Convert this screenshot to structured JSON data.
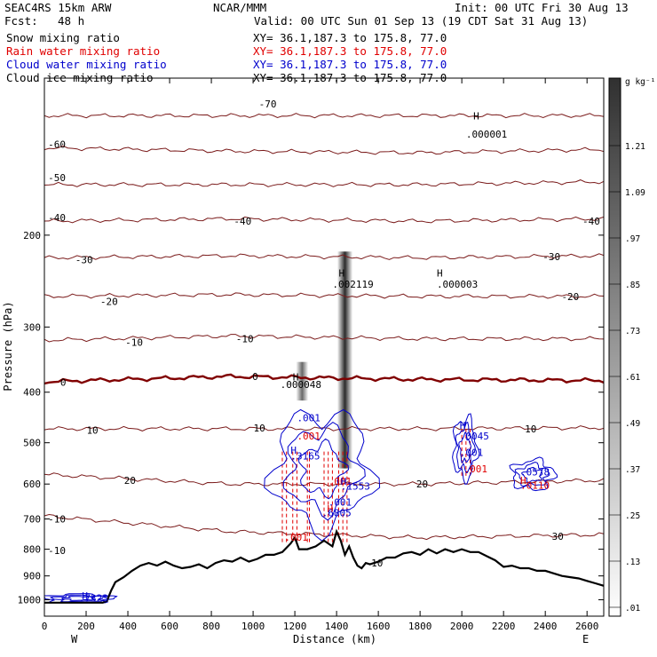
{
  "header": {
    "model": "SEAC4RS 15km ARW",
    "center": "NCAR/MMM",
    "init": "Init: 00 UTC Fri 30 Aug 13",
    "fcst_label": "Fcst:",
    "fcst_hours": "48 h",
    "valid": "Valid: 00 UTC Sun 01 Sep 13 (19 CDT Sat 31 Aug 13)"
  },
  "fields": [
    {
      "name": "Snow mixing ratio",
      "xy": "XY=  36.1,187.3 to 175.8, 77.0",
      "color": "#000000"
    },
    {
      "name": "Rain water mixing ratio",
      "xy": "XY=  36.1,187.3 to 175.8, 77.0",
      "color": "#e00000"
    },
    {
      "name": "Cloud water mixing ratio",
      "xy": "XY=  36.1,187.3 to 175.8, 77.0",
      "color": "#0000cc"
    },
    {
      "name": "Cloud ice mixing ratio",
      "xy": "XY=  36.1,187.3 to 175.8, 77.0",
      "color": "#000000"
    }
  ],
  "chart_data": {
    "type": "cross-section",
    "xlabel": "Distance (km)",
    "ylabel": "Pressure (hPa)",
    "xlim": [
      0,
      2680
    ],
    "ylim": [
      1075,
      100
    ],
    "y_scale": "log-pressure",
    "x_ticks": [
      0,
      200,
      400,
      600,
      800,
      1000,
      1200,
      1400,
      1600,
      1800,
      2000,
      2200,
      2400,
      2600
    ],
    "y_ticks": [
      200,
      300,
      400,
      500,
      600,
      700,
      800,
      900,
      1000
    ],
    "x_endpoints": {
      "left": "W",
      "right": "E"
    },
    "colorbar": {
      "unit": "g kg⁻¹",
      "labels": [
        1.21,
        1.09,
        0.97,
        0.85,
        0.73,
        0.61,
        0.49,
        0.37,
        0.25,
        0.13,
        0.01
      ],
      "label_text": [
        "1.21",
        "1.09",
        ".97",
        ".85",
        ".73",
        ".61",
        ".49",
        ".37",
        ".25",
        ".13",
        ".01"
      ]
    },
    "temperature_contours": {
      "units": "deg C",
      "color": "#7a1a1a",
      "zero_color": "#800000",
      "levels": [
        {
          "t": -70,
          "p": [
            118,
            118,
            118,
            118
          ]
        },
        {
          "t": -60,
          "p": [
            136,
            138,
            139,
            137
          ]
        },
        {
          "t": -50,
          "p": [
            160,
            160,
            160,
            158
          ]
        },
        {
          "t": -40,
          "p": [
            188,
            186,
            188,
            186
          ]
        },
        {
          "t": -30,
          "p": [
            221,
            219,
            221,
            219
          ]
        },
        {
          "t": -20,
          "p": [
            262,
            260,
            262,
            262
          ]
        },
        {
          "t": -10,
          "p": [
            318,
            312,
            316,
            316
          ]
        },
        {
          "t": 0,
          "p": [
            382,
            373,
            378,
            380
          ]
        },
        {
          "t": 10,
          "p": [
            470,
            470,
            470,
            468
          ]
        },
        {
          "t": 20,
          "p": [
            575,
            600,
            600,
            590
          ]
        },
        {
          "t": 30,
          "p": [
            690,
            740,
            760,
            750
          ]
        }
      ],
      "labels": [
        {
          "text": "-70",
          "x": 1070,
          "p": 112
        },
        {
          "text": "-60",
          "x": 60,
          "p": 134
        },
        {
          "text": "-50",
          "x": 60,
          "p": 155
        },
        {
          "text": "-40",
          "x": 60,
          "p": 185
        },
        {
          "text": "-40",
          "x": 950,
          "p": 188
        },
        {
          "text": "-40",
          "x": 2620,
          "p": 188
        },
        {
          "text": "-30",
          "x": 190,
          "p": 223
        },
        {
          "text": "-30",
          "x": 2430,
          "p": 220
        },
        {
          "text": "-20",
          "x": 310,
          "p": 268
        },
        {
          "text": "-20",
          "x": 2520,
          "p": 262
        },
        {
          "text": "-10",
          "x": 430,
          "p": 321
        },
        {
          "text": "-10",
          "x": 960,
          "p": 316
        },
        {
          "text": "0",
          "x": 90,
          "p": 383
        },
        {
          "text": "0",
          "x": 1010,
          "p": 373
        },
        {
          "text": "10",
          "x": 230,
          "p": 473
        },
        {
          "text": "10",
          "x": 1030,
          "p": 468
        },
        {
          "text": "10",
          "x": 2330,
          "p": 470
        },
        {
          "text": "20",
          "x": 410,
          "p": 590
        },
        {
          "text": "20",
          "x": 1810,
          "p": 600
        },
        {
          "text": "30",
          "x": 2460,
          "p": 755
        },
        {
          "text": "-10",
          "x": 60,
          "p": 700
        },
        {
          "text": "-10",
          "x": 60,
          "p": 805
        },
        {
          "text": "-10",
          "x": 1580,
          "p": 850
        }
      ]
    },
    "terrain": {
      "x": [
        0,
        30,
        80,
        120,
        160,
        200,
        240,
        280,
        300,
        320,
        340,
        380,
        420,
        460,
        500,
        540,
        580,
        620,
        660,
        700,
        740,
        780,
        820,
        860,
        900,
        940,
        980,
        1020,
        1060,
        1100,
        1140,
        1180,
        1200,
        1220,
        1260,
        1300,
        1340,
        1380,
        1400,
        1420,
        1440,
        1460,
        1480,
        1500,
        1520,
        1540,
        1560,
        1600,
        1640,
        1680,
        1720,
        1760,
        1800,
        1840,
        1880,
        1920,
        1960,
        2000,
        2040,
        2080,
        2120,
        2160,
        2200,
        2240,
        2280,
        2320,
        2360,
        2400,
        2440,
        2480,
        2520,
        2560,
        2600,
        2640,
        2680
      ],
      "p": [
        1013,
        1013,
        1013,
        1013,
        1013,
        1013,
        1013,
        1013,
        1005,
        960,
        925,
        905,
        880,
        860,
        850,
        860,
        845,
        860,
        870,
        865,
        855,
        870,
        850,
        840,
        845,
        830,
        845,
        835,
        820,
        820,
        810,
        780,
        760,
        800,
        800,
        790,
        770,
        790,
        740,
        770,
        820,
        790,
        830,
        860,
        870,
        850,
        855,
        845,
        830,
        830,
        815,
        810,
        820,
        800,
        815,
        800,
        810,
        800,
        810,
        810,
        825,
        840,
        865,
        860,
        870,
        870,
        880,
        880,
        890,
        900,
        905,
        910,
        920,
        930,
        940
      ]
    },
    "shaded_columns": [
      {
        "x": 1235,
        "p_top": 350,
        "p_bottom": 415,
        "max": 0.61
      },
      {
        "x": 1440,
        "p_top": 215,
        "p_bottom": 560,
        "max": 1.21
      }
    ],
    "cloud_water": {
      "color": "#0000cc",
      "regions": [
        {
          "x0": 1100,
          "x1": 1560,
          "p_top": 440,
          "p_bottom": 720
        },
        {
          "x0": 1960,
          "x1": 2070,
          "p_top": 450,
          "p_bottom": 585
        },
        {
          "x0": 2240,
          "x1": 2440,
          "p_top": 540,
          "p_bottom": 615
        },
        {
          "x0": 0,
          "x1": 330,
          "p_top": 975,
          "p_bottom": 1013
        }
      ]
    },
    "rain_water": {
      "color": "#e00000",
      "shafts": [
        1140,
        1160,
        1190,
        1210,
        1260,
        1270,
        1340,
        1360,
        1380,
        1410,
        1430,
        1450,
        2000,
        2020,
        2040
      ]
    },
    "annotations": [
      {
        "text": "H",
        "x": 2055,
        "p": 120,
        "color": "#000000"
      },
      {
        "text": ".000001",
        "x": 2020,
        "p": 130,
        "color": "#000000"
      },
      {
        "text": "H",
        "x": 1880,
        "p": 240,
        "color": "#000000"
      },
      {
        "text": ".000003",
        "x": 1880,
        "p": 252,
        "color": "#000000"
      },
      {
        "text": "H",
        "x": 1410,
        "p": 240,
        "color": "#000000"
      },
      {
        "text": ".002119",
        "x": 1380,
        "p": 252,
        "color": "#000000"
      },
      {
        "text": "H",
        "x": 1190,
        "p": 380,
        "color": "#000000"
      },
      {
        "text": ".000048",
        "x": 1130,
        "p": 393,
        "color": "#000000"
      },
      {
        "text": ".001",
        "x": 1210,
        "p": 455,
        "color": "#0000cc"
      },
      {
        "text": ".001",
        "x": 1210,
        "p": 493,
        "color": "#e00000"
      },
      {
        "text": "H",
        "x": 1180,
        "p": 525,
        "color": "#0000cc"
      },
      {
        "text": ".3165",
        "x": 1180,
        "p": 538,
        "color": "#0000cc"
      },
      {
        "text": ".001",
        "x": 1360,
        "p": 602,
        "color": "#e00000"
      },
      {
        "text": "H",
        "x": 1420,
        "p": 602,
        "color": "#0000cc"
      },
      {
        "text": ".1553",
        "x": 1420,
        "p": 615,
        "color": "#0000cc"
      },
      {
        "text": ".001",
        "x": 1360,
        "p": 660,
        "color": "#0000cc"
      },
      {
        "text": "H",
        "x": 1355,
        "p": 680,
        "color": "#e00000"
      },
      {
        "text": ".6805",
        "x": 1330,
        "p": 692,
        "color": "#0000cc"
      },
      {
        "text": "H",
        "x": 1990,
        "p": 470,
        "color": "#0000cc"
      },
      {
        "text": ".0045",
        "x": 1990,
        "p": 493,
        "color": "#0000cc"
      },
      {
        "text": ".001",
        "x": 1990,
        "p": 530,
        "color": "#0000cc"
      },
      {
        "text": ".001",
        "x": 2010,
        "p": 570,
        "color": "#e00000"
      },
      {
        "text": ".0578",
        "x": 2280,
        "p": 578,
        "color": "#0000cc"
      },
      {
        "text": "H",
        "x": 2280,
        "p": 600,
        "color": "#e00000"
      },
      {
        "text": ".0110",
        "x": 2280,
        "p": 612,
        "color": "#e00000"
      },
      {
        "text": ".001",
        "x": 1150,
        "p": 770,
        "color": "#e00000"
      },
      {
        "text": "H",
        "x": 180,
        "p": 997,
        "color": "#0000cc"
      },
      {
        "text": ".7323",
        "x": 165,
        "p": 1008,
        "color": "#0000cc"
      }
    ]
  }
}
